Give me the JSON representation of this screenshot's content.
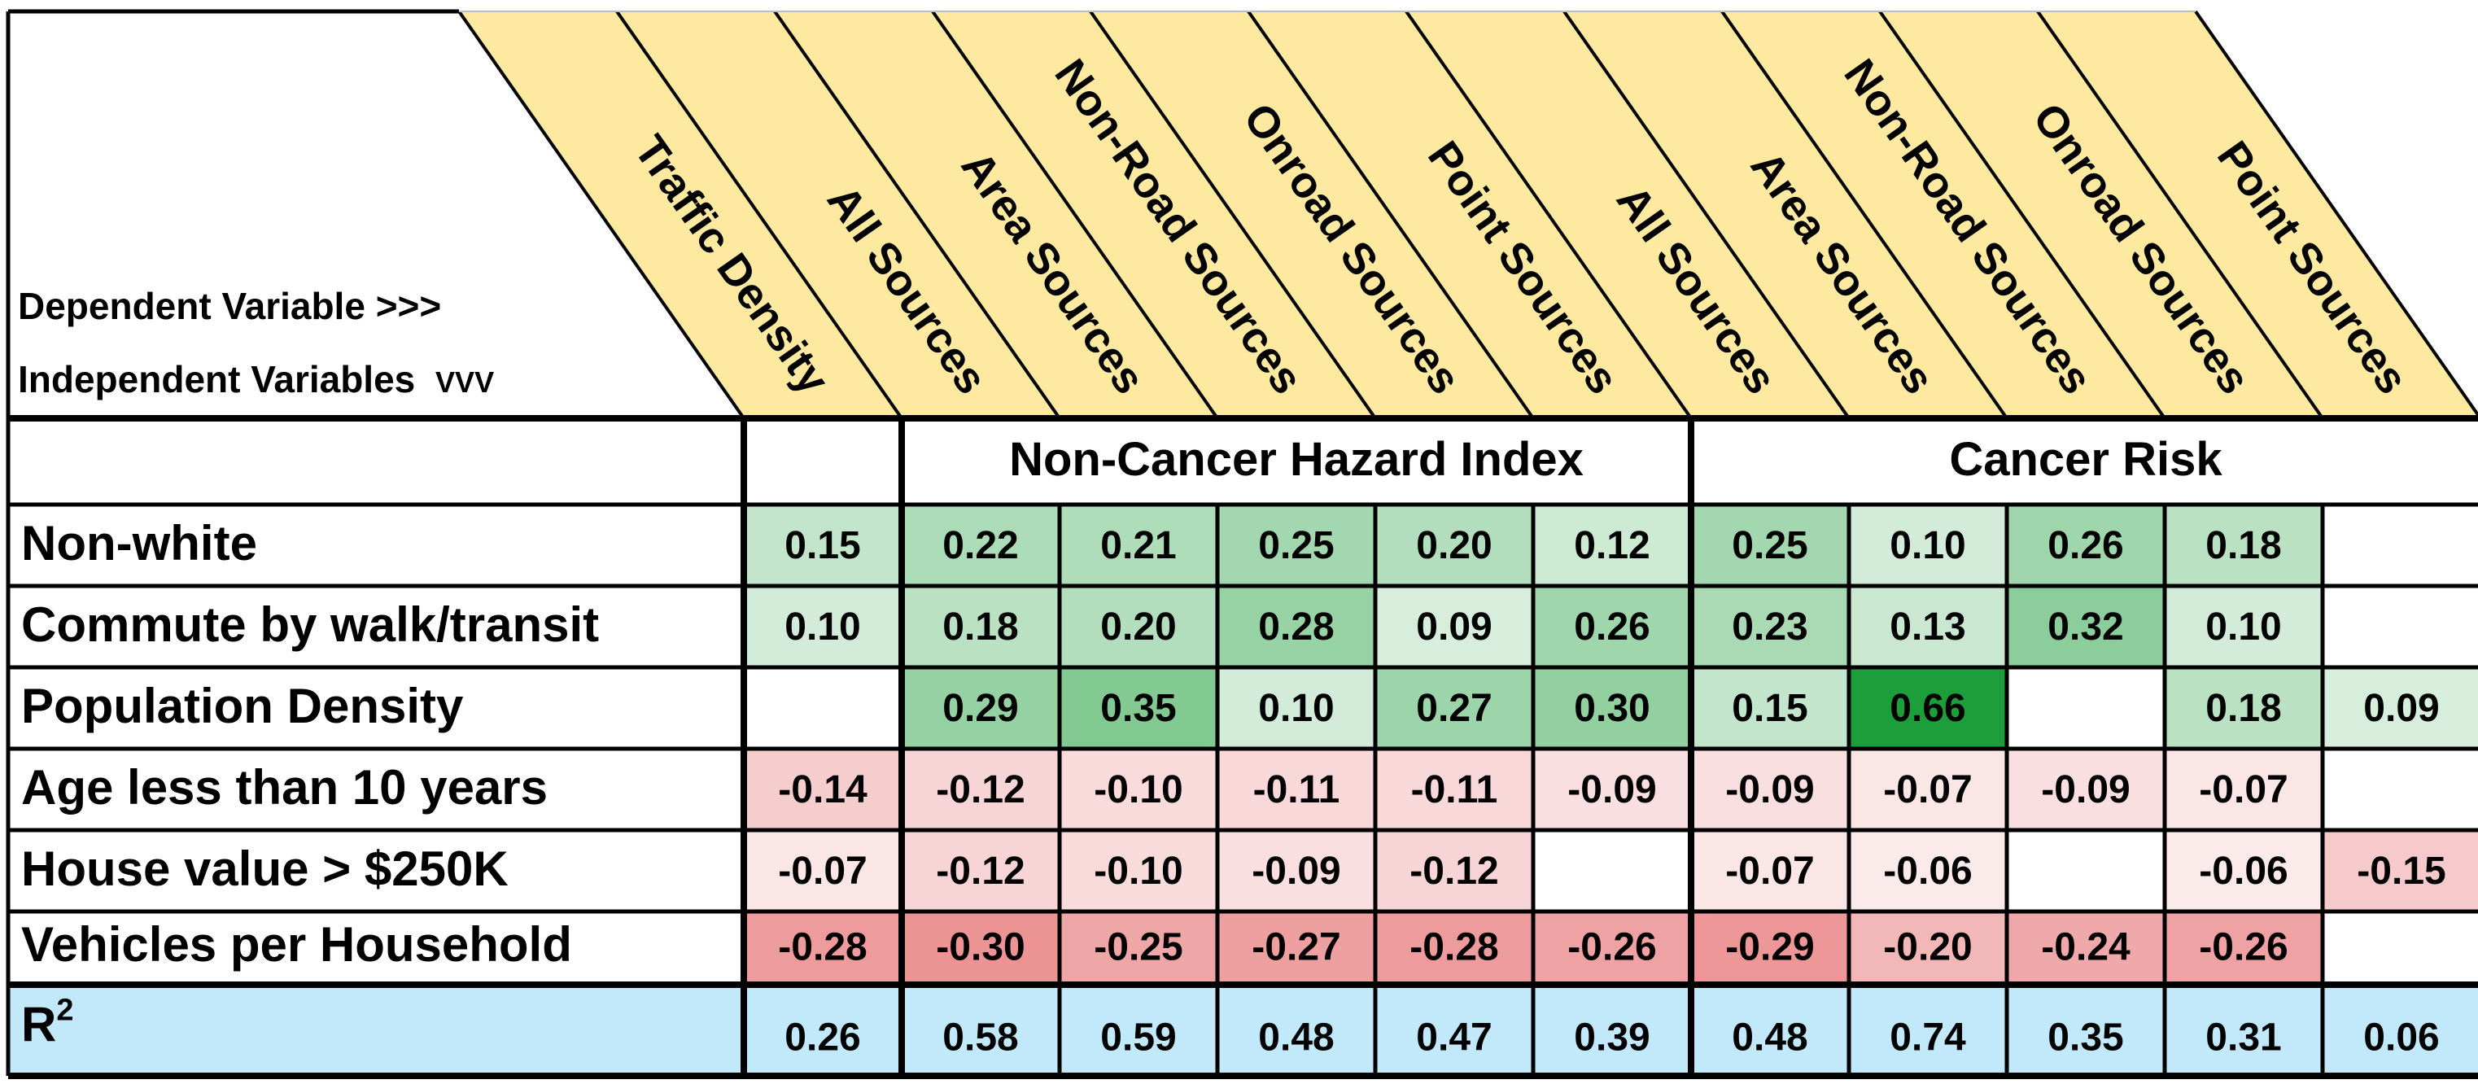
{
  "header": {
    "dependent_label": "Dependent Variable >>>",
    "independent_label": "Independent Variables",
    "independent_suffix": "VVV",
    "columns": [
      "Traffic Density",
      "All Sources",
      "Area Sources",
      "Non-Road Sources",
      "Onroad Sources",
      "Point Sources",
      "All Sources",
      "Area Sources",
      "Non-Road Sources",
      "Onroad Sources",
      "Point Sources"
    ],
    "groups": [
      {
        "label": "Non-Cancer Hazard Index"
      },
      {
        "label": "Cancer Risk"
      }
    ]
  },
  "chart_data": {
    "type": "table",
    "rows": [
      {
        "label": "Non-white",
        "values": [
          0.15,
          0.22,
          0.21,
          0.25,
          0.2,
          0.12,
          0.25,
          0.1,
          0.26,
          0.18,
          null
        ]
      },
      {
        "label": "Commute by walk/transit",
        "values": [
          0.1,
          0.18,
          0.2,
          0.28,
          0.09,
          0.26,
          0.23,
          0.13,
          0.32,
          0.1,
          null
        ]
      },
      {
        "label": "Population Density",
        "values": [
          null,
          0.29,
          0.35,
          0.1,
          0.27,
          0.3,
          0.15,
          0.66,
          null,
          0.18,
          0.09
        ]
      },
      {
        "label": "Age less than 10 years",
        "values": [
          -0.14,
          -0.12,
          -0.1,
          -0.11,
          -0.11,
          -0.09,
          -0.09,
          -0.07,
          -0.09,
          -0.07,
          null
        ]
      },
      {
        "label": "House value > $250K",
        "values": [
          -0.07,
          -0.12,
          -0.1,
          -0.09,
          -0.12,
          null,
          -0.07,
          -0.06,
          null,
          -0.06,
          -0.15
        ]
      },
      {
        "label": "Vehicles per Household",
        "values": [
          -0.28,
          -0.3,
          -0.25,
          -0.27,
          -0.28,
          -0.26,
          -0.29,
          -0.2,
          -0.24,
          -0.26,
          null
        ]
      }
    ],
    "r2": {
      "label": "R",
      "label_sup": "2",
      "values": [
        0.26,
        0.58,
        0.59,
        0.48,
        0.47,
        0.39,
        0.48,
        0.74,
        0.35,
        0.31,
        0.06
      ]
    },
    "colors": {
      "positive": "#1c9e3a",
      "negative": "#e04f50",
      "header_fill": "#fdeaa0",
      "r2_fill": "#c2e9fa",
      "border": "#000000"
    }
  }
}
